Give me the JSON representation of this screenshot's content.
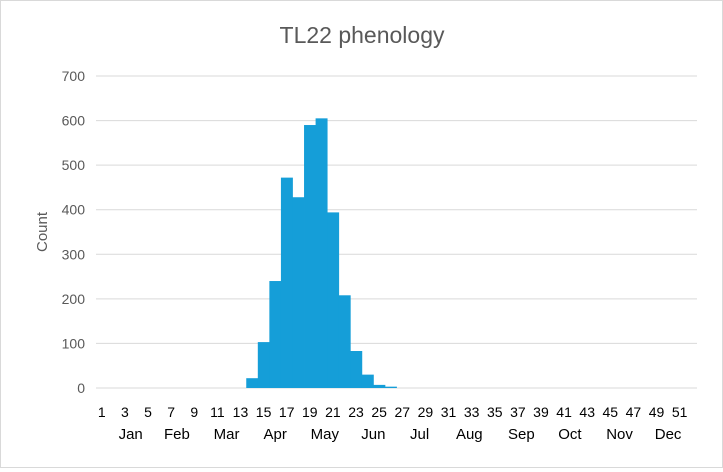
{
  "chart_data": {
    "type": "bar",
    "title": "TL22 phenology",
    "xlabel": "",
    "ylabel": "Count",
    "ylim": [
      0,
      700
    ],
    "y_ticks": [
      "0",
      "100",
      "200",
      "300",
      "400",
      "500",
      "600",
      "700"
    ],
    "grid": true,
    "legend": "none",
    "bar_color": "#159ed8",
    "categories": [
      "1",
      "2",
      "3",
      "4",
      "5",
      "6",
      "7",
      "8",
      "9",
      "10",
      "11",
      "12",
      "13",
      "14",
      "15",
      "16",
      "17",
      "18",
      "19",
      "20",
      "21",
      "22",
      "23",
      "24",
      "25",
      "26",
      "27",
      "28",
      "29",
      "30",
      "31",
      "32",
      "33",
      "34",
      "35",
      "36",
      "37",
      "38",
      "39",
      "40",
      "41",
      "42",
      "43",
      "44",
      "45",
      "46",
      "47",
      "48",
      "49",
      "50",
      "51",
      "52"
    ],
    "x_tick_labels": [
      "1",
      "3",
      "5",
      "7",
      "9",
      "11",
      "13",
      "15",
      "17",
      "19",
      "21",
      "23",
      "25",
      "27",
      "29",
      "31",
      "33",
      "35",
      "37",
      "39",
      "41",
      "43",
      "45",
      "47",
      "49",
      "51"
    ],
    "month_labels": [
      "Jan",
      "Feb",
      "Mar",
      "Apr",
      "May",
      "Jun",
      "Jul",
      "Aug",
      "Sep",
      "Oct",
      "Nov",
      "Dec"
    ],
    "month_positions": [
      3.5,
      7.5,
      11.8,
      16,
      20.3,
      24.5,
      28.5,
      32.8,
      37.3,
      41.5,
      45.8,
      50
    ],
    "values": [
      0,
      0,
      0,
      0,
      0,
      0,
      0,
      0,
      0,
      0,
      0,
      0,
      0,
      22,
      103,
      240,
      472,
      428,
      590,
      605,
      394,
      208,
      83,
      30,
      7,
      3,
      0,
      0,
      0,
      0,
      0,
      0,
      0,
      0,
      0,
      0,
      0,
      0,
      0,
      0,
      0,
      0,
      0,
      0,
      0,
      0,
      0,
      0,
      0,
      0,
      0,
      0
    ]
  }
}
